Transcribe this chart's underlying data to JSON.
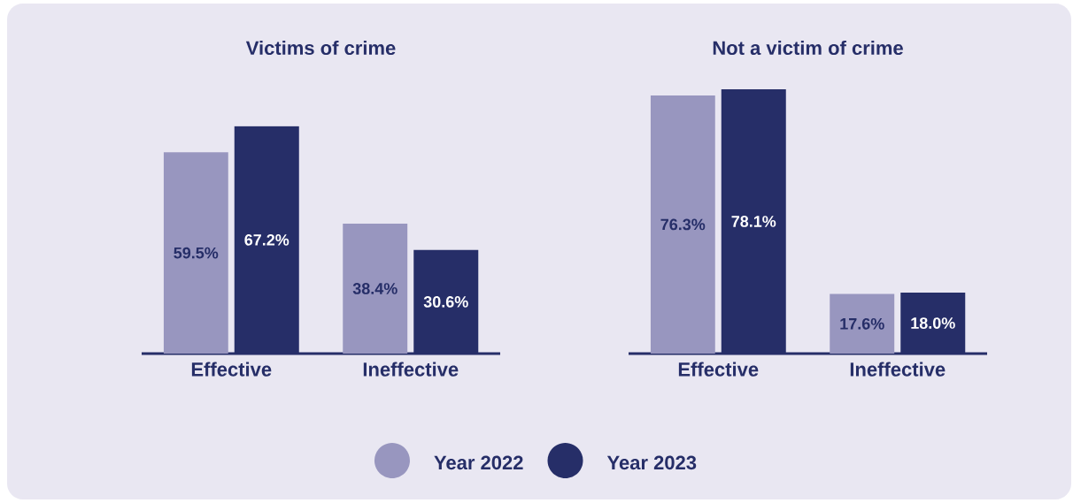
{
  "chart_data": [
    {
      "type": "bar",
      "title": "Victims of crime",
      "categories": [
        "Effective",
        "Ineffective"
      ],
      "data_labels": true,
      "legend": "bottom",
      "series": [
        {
          "name": "Year 2022",
          "color": "#9896bf",
          "values": [
            59.5,
            38.4
          ],
          "value_labels": [
            "59.5%",
            "38.4%"
          ]
        },
        {
          "name": "Year 2023",
          "color": "#262e68",
          "values": [
            67.2,
            30.6
          ],
          "value_labels": [
            "67.2%",
            "30.6%"
          ]
        }
      ]
    },
    {
      "type": "bar",
      "title": "Not a victim of crime",
      "categories": [
        "Effective",
        "Ineffective"
      ],
      "data_labels": true,
      "series": [
        {
          "color": "#9896bf",
          "values": [
            76.3,
            17.6
          ],
          "value_labels": [
            "76.3%",
            "17.6%"
          ]
        },
        {
          "color": "#262e68",
          "values": [
            78.1,
            18.0
          ],
          "value_labels": [
            "78.1%",
            "18.0%"
          ]
        }
      ]
    }
  ]
}
